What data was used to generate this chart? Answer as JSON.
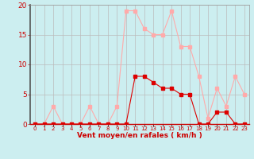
{
  "hours": [
    0,
    1,
    2,
    3,
    4,
    5,
    6,
    7,
    8,
    9,
    10,
    11,
    12,
    13,
    14,
    15,
    16,
    17,
    18,
    19,
    20,
    21,
    22,
    23
  ],
  "rafales": [
    0,
    0,
    3,
    0,
    0,
    0,
    3,
    0,
    0,
    3,
    19,
    19,
    16,
    15,
    15,
    19,
    13,
    13,
    8,
    1,
    6,
    3,
    8,
    5
  ],
  "vent_moyen": [
    0,
    0,
    0,
    0,
    0,
    0,
    0,
    0,
    0,
    0,
    0,
    8,
    8,
    7,
    6,
    6,
    5,
    5,
    0,
    0,
    2,
    2,
    0,
    0
  ],
  "color_rafales": "#ffaaaa",
  "color_vent": "#dd0000",
  "bg_color": "#cceef0",
  "grid_color": "#bbbbbb",
  "xlabel": "Vent moyen/en rafales ( km/h )",
  "ylim": [
    0,
    20
  ],
  "xlim": [
    0,
    23
  ],
  "yticks": [
    0,
    5,
    10,
    15,
    20
  ],
  "label_color": "#cc0000",
  "marker_size": 2.5
}
